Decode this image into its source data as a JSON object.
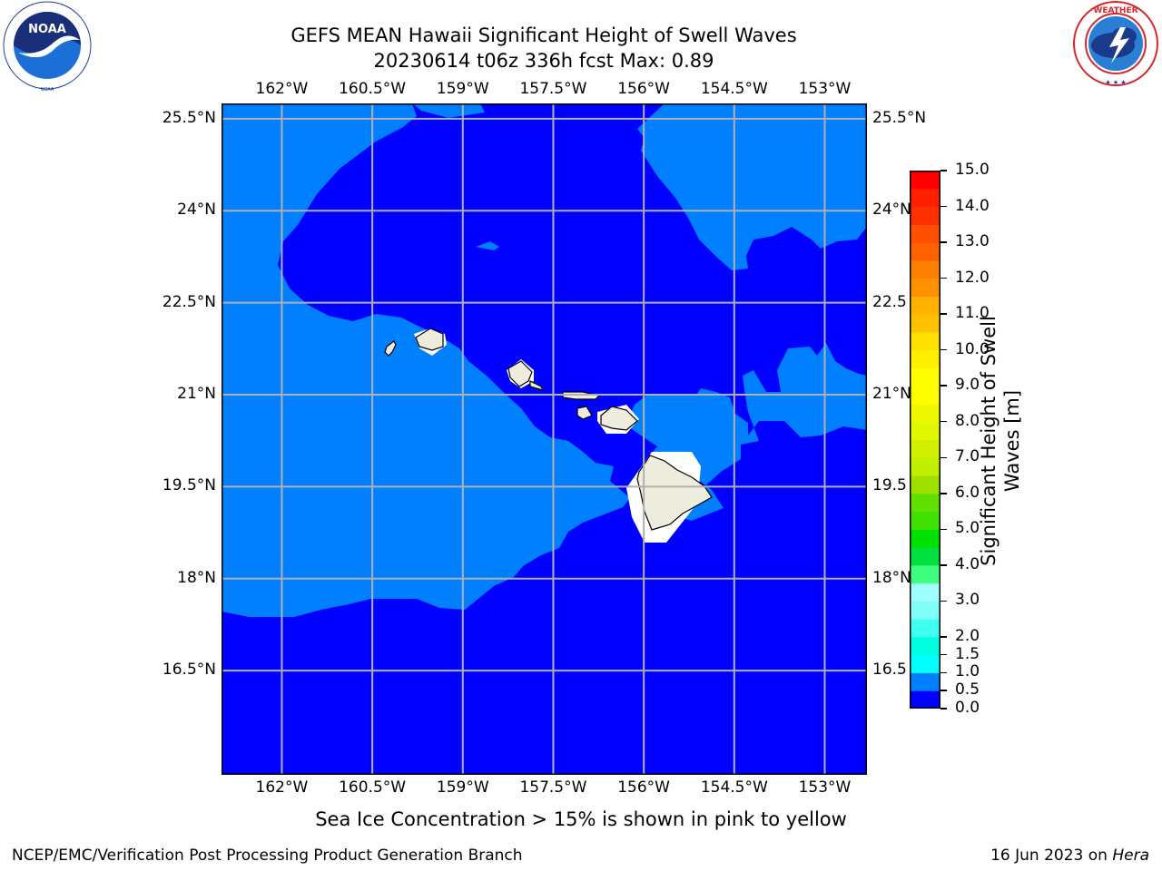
{
  "header": {
    "title_line1": "GEFS MEAN Hawaii Significant Height of Swell Waves",
    "title_line2": "20230614 t06z 336h fcst   Max: 0.89"
  },
  "logos": {
    "left": {
      "name": "NOAA",
      "ring_text": "NATIONAL OCEANIC AND ATMOSPHERIC ADMINISTRATION · U.S. DEPARTMENT OF COMMERCE"
    },
    "right": {
      "name": "NATIONAL WEATHER SERVICE",
      "ring_text": "NATIONAL WEATHER SERVICE"
    }
  },
  "map": {
    "lon_ticks": [
      "162°W",
      "160.5°W",
      "159°W",
      "157.5°W",
      "156°W",
      "154.5°W",
      "153°W"
    ],
    "lon_values": [
      -162,
      -160.5,
      -159,
      -157.5,
      -156,
      -154.5,
      -153
    ],
    "lat_ticks": [
      "25.5°N",
      "24°N",
      "22.5°N",
      "21°N",
      "19.5°N",
      "18°N",
      "16.5°N"
    ],
    "lat_ticks_right": [
      "25.5°N",
      "24°N",
      "22.5",
      "21°N",
      "19.5",
      "18°N",
      "16.5"
    ],
    "lat_values": [
      25.5,
      24,
      22.5,
      21,
      19.5,
      18,
      16.5
    ],
    "lon_range": [
      -163,
      -152.3
    ],
    "lat_range": [
      14.8,
      25.75
    ],
    "gridlines": true,
    "colors": {
      "deep_blue": "#0000ff",
      "light_blue": "#0080ff",
      "land": "#eeecdc",
      "grid": "#b0b0b0"
    }
  },
  "colorbar": {
    "label": "Significant Height of Swell Waves [m]",
    "label_line1": "Significant Height of Swell",
    "label_line2": "Waves [m]",
    "levels": [
      0.0,
      0.5,
      1.0,
      1.5,
      2.0,
      2.5,
      3.0,
      3.5,
      4.0,
      4.5,
      5.0,
      5.5,
      6.0,
      6.5,
      7.0,
      7.5,
      8.0,
      8.5,
      9.0,
      9.5,
      10.0,
      10.5,
      11.0,
      11.5,
      12.0,
      12.5,
      13.0,
      13.5,
      14.0,
      14.5,
      15.0
    ],
    "tick_labels": [
      "0.0",
      "0.5",
      "1.0",
      "1.5",
      "2.0",
      "3.0",
      "4.0",
      "5.0",
      "6.0",
      "7.0",
      "8.0",
      "9.0",
      "10.0",
      "11.0",
      "12.0",
      "13.0",
      "14.0",
      "15.0"
    ],
    "tick_values": [
      0,
      0.5,
      1,
      1.5,
      2,
      3,
      4,
      5,
      6,
      7,
      8,
      9,
      10,
      11,
      12,
      13,
      14,
      15
    ],
    "colors": [
      "#0000ff",
      "#0080ff",
      "#00ffff",
      "#00ffe0",
      "#40fff0",
      "#80fff8",
      "#a0ffff",
      "#40ff80",
      "#00e040",
      "#00e000",
      "#40e000",
      "#60e000",
      "#a0e000",
      "#c0f000",
      "#d0f000",
      "#e0f800",
      "#f0f800",
      "#ffff00",
      "#ffff00",
      "#fff000",
      "#ffe000",
      "#ffc000",
      "#ffb000",
      "#ff9000",
      "#ff8000",
      "#ff6000",
      "#ff5000",
      "#ff3000",
      "#ff2000",
      "#ff0000"
    ]
  },
  "notes": {
    "sea_ice": "Sea Ice Concentration > 15% is shown in pink to yellow"
  },
  "footer": {
    "left": "NCEP/EMC/Verification Post Processing Product Generation Branch",
    "date": "16 Jun 2023 on ",
    "machine": "Hera"
  }
}
